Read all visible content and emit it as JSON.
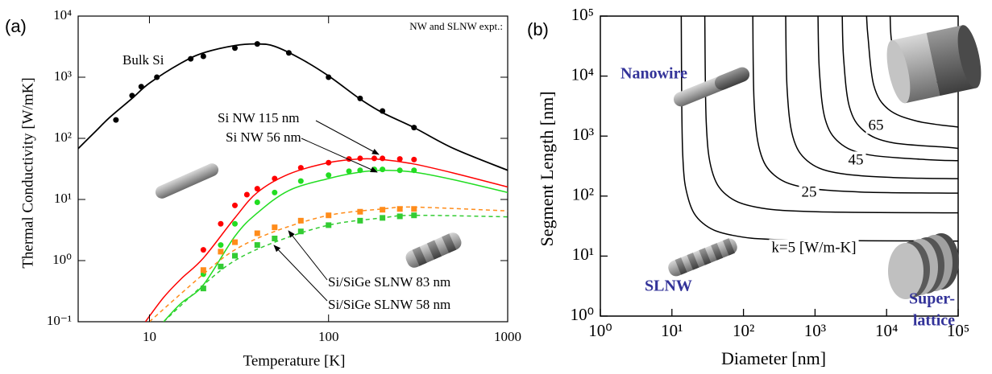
{
  "chart_data": [
    {
      "type": "line",
      "panel": "(a)",
      "xlabel": "Temperature [K]",
      "ylabel": "Thermal Conductivity [W/mK]",
      "annotation": "NW and SLNW expt.:",
      "log_x": true,
      "log_y": true,
      "xlim": [
        4,
        1000
      ],
      "xticks": [
        10,
        100,
        1000
      ],
      "ylim": [
        0.1,
        10000
      ],
      "yticks": [
        {
          "value": 0.1,
          "label": "10⁻¹"
        },
        {
          "value": 1,
          "label": "10⁰"
        },
        {
          "value": 10,
          "label": "10¹"
        },
        {
          "value": 100,
          "label": "10²"
        },
        {
          "value": 1000,
          "label": "10³"
        },
        {
          "value": 10000,
          "label": "10⁴"
        }
      ],
      "series": [
        {
          "name": "Bulk Si",
          "color": "#000000",
          "dash": false,
          "marker": "circle",
          "x": [
            4,
            5,
            6,
            8,
            10,
            15,
            20,
            30,
            40,
            50,
            70,
            100,
            150,
            200,
            300,
            500,
            1000
          ],
          "values": [
            68,
            130,
            220,
            450,
            800,
            1700,
            2500,
            3300,
            3500,
            3200,
            2000,
            1050,
            440,
            263,
            150,
            68,
            30
          ],
          "points_x": [
            6.5,
            8,
            9,
            11,
            17,
            20,
            30,
            40,
            60,
            100,
            150,
            200,
            300
          ],
          "points": [
            200,
            500,
            700,
            1000,
            2000,
            2200,
            3000,
            3500,
            2500,
            1000,
            450,
            280,
            150
          ]
        },
        {
          "name": "Si NW 115 nm",
          "color": "#ff0000",
          "dash": false,
          "marker": "circle",
          "x": [
            9.5,
            12,
            15,
            20,
            30,
            40,
            60,
            100,
            150,
            200,
            300,
            500,
            1000
          ],
          "values": [
            0.1,
            0.25,
            0.5,
            1.1,
            5,
            13,
            26,
            40,
            46,
            45,
            38,
            27,
            16
          ],
          "points_x": [
            20,
            25,
            30,
            35,
            40,
            50,
            70,
            100,
            130,
            150,
            180,
            200,
            250,
            300
          ],
          "points": [
            1.5,
            4,
            8,
            12,
            15,
            22,
            33,
            40,
            46,
            47,
            47,
            47,
            46,
            45
          ]
        },
        {
          "name": "Si NW 56 nm",
          "color": "#22dd22",
          "dash": false,
          "marker": "circle",
          "x": [
            12,
            15,
            20,
            30,
            40,
            60,
            100,
            150,
            200,
            300,
            500,
            1000
          ],
          "values": [
            0.1,
            0.2,
            0.4,
            2.5,
            6,
            14,
            22,
            28,
            30,
            28,
            21,
            13
          ],
          "points_x": [
            20,
            25,
            30,
            40,
            50,
            70,
            100,
            130,
            150,
            180,
            200,
            250,
            300
          ],
          "points": [
            0.6,
            1.8,
            4,
            9,
            13,
            20,
            25,
            29,
            30,
            31,
            31,
            30,
            30
          ]
        },
        {
          "name": "Si/SiGe SLNW 83 nm",
          "color": "#ff8c1a",
          "dash": true,
          "marker": "square",
          "x": [
            10,
            20,
            30,
            50,
            100,
            200,
            300,
            1000
          ],
          "values": [
            0.1,
            0.6,
            1.5,
            3,
            5.5,
            7,
            7.5,
            6.5
          ],
          "points_x": [
            20,
            25,
            30,
            40,
            50,
            70,
            100,
            150,
            200,
            250,
            300
          ],
          "points": [
            0.7,
            1.4,
            2,
            2.8,
            3.5,
            4.5,
            5.5,
            6.3,
            6.8,
            7,
            7
          ]
        },
        {
          "name": "Si/SiGe SLNW 58 nm",
          "color": "#33cc33",
          "dash": true,
          "marker": "square",
          "x": [
            12,
            20,
            30,
            50,
            100,
            200,
            300,
            1000
          ],
          "values": [
            0.1,
            0.4,
            1,
            2,
            3.8,
            5,
            5.5,
            5.2
          ],
          "points_x": [
            20,
            25,
            30,
            40,
            50,
            70,
            100,
            150,
            200,
            250,
            300
          ],
          "points": [
            0.35,
            0.8,
            1.2,
            1.8,
            2.3,
            3,
            3.8,
            4.5,
            5,
            5.3,
            5.5
          ]
        }
      ]
    },
    {
      "type": "contour",
      "panel": "(b)",
      "xlabel": "Diameter [nm]",
      "ylabel": "Segment Length [nm]",
      "log_x": true,
      "log_y": true,
      "xlim": [
        1,
        100000
      ],
      "ylim": [
        1,
        100000
      ],
      "xticks": [
        {
          "value": 1,
          "label": "10⁰"
        },
        {
          "value": 10,
          "label": "10¹"
        },
        {
          "value": 100,
          "label": "10²"
        },
        {
          "value": 1000,
          "label": "10³"
        },
        {
          "value": 10000,
          "label": "10⁴"
        },
        {
          "value": 100000,
          "label": "10⁵"
        }
      ],
      "yticks": [
        {
          "value": 1,
          "label": "10⁰"
        },
        {
          "value": 10,
          "label": "10¹"
        },
        {
          "value": 100,
          "label": "10²"
        },
        {
          "value": 1000,
          "label": "10³"
        },
        {
          "value": 10000,
          "label": "10⁴"
        },
        {
          "value": 100000,
          "label": "10⁵"
        }
      ],
      "color": "#000000",
      "structure_labels": [
        "Nanowire",
        "SLNW",
        "Super-",
        "lattice"
      ],
      "structure_color": "#333399",
      "contours": [
        {
          "label": "k=5 [W/m-K]",
          "x": [
            13.5,
            14.1,
            17.0,
            26.9,
            67.6,
            427,
            100000
          ],
          "y": [
            100000,
            562,
            89.1,
            35.5,
            22.4,
            18.6,
            17.8
          ]
        },
        {
          "x": [
            28.8,
            30.2,
            36.3,
            57.5,
            145,
            912,
            100000
          ],
          "y": [
            100000,
            1660,
            263,
            105,
            66.1,
            55.0,
            52.5
          ]
        },
        {
          "label": "25",
          "x": [
            135,
            141,
            170,
            269,
            676,
            4270,
            100000
          ],
          "y": [
            100000,
            3550,
            562,
            224,
            141,
            117,
            112
          ]
        },
        {
          "x": [
            389,
            407,
            490,
            776,
            1950,
            12300,
            100000
          ],
          "y": [
            100000,
            6170,
            977,
            389,
            245,
            204,
            195
          ]
        },
        {
          "label": "45",
          "x": [
            1100,
            1150,
            1380,
            2190,
            5500,
            34700,
            100000
          ],
          "y": [
            100000,
            12300,
            1950,
            776,
            490,
            407,
            389
          ]
        },
        {
          "x": [
            2400,
            2510,
            3020,
            4790,
            12000,
            75900,
            100000
          ],
          "y": [
            100000,
            19500,
            3090,
            1230,
            776,
            646,
            617
          ]
        },
        {
          "label": "65",
          "x": [
            5250,
            5500,
            6610,
            10500,
            26300,
            100000
          ],
          "y": [
            100000,
            44700,
            7080,
            2820,
            1780,
            1410
          ]
        },
        {
          "x": [
            11200,
            11700,
            14100,
            22400,
            50100,
            100000
          ],
          "y": [
            100000,
            39800,
            17800,
            10000,
            7940,
            7410
          ]
        }
      ]
    }
  ]
}
